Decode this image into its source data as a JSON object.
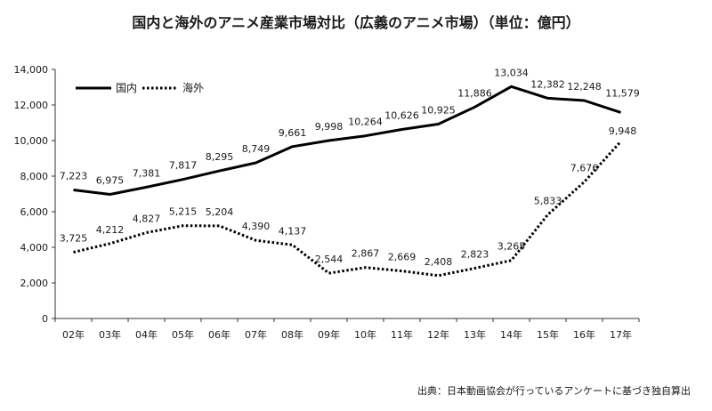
{
  "chart_data": {
    "type": "line",
    "title": "国内と海外のアニメ産業市場対比（広義のアニメ市場）（単位：億円）",
    "xlabel": "",
    "ylabel": "",
    "categories": [
      "02年",
      "03年",
      "04年",
      "05年",
      "06年",
      "07年",
      "08年",
      "09年",
      "10年",
      "11年",
      "12年",
      "13年",
      "14年",
      "15年",
      "16年",
      "17年"
    ],
    "ylim": [
      0,
      14000
    ],
    "yticks": [
      0,
      2000,
      4000,
      6000,
      8000,
      10000,
      12000,
      14000
    ],
    "ytick_labels": [
      "0",
      "2,000",
      "4,000",
      "6,000",
      "8,000",
      "10,000",
      "12,000",
      "14,000"
    ],
    "grid": false,
    "legend_position": "top-left",
    "series": [
      {
        "name": "国内",
        "style": "solid",
        "color": "#000000",
        "values": [
          7223,
          6975,
          7381,
          7817,
          8295,
          8749,
          9661,
          9998,
          10264,
          10626,
          10925,
          11886,
          13034,
          12382,
          12248,
          11579
        ],
        "value_labels": [
          "7,223",
          "6,975",
          "7,381",
          "7,817",
          "8,295",
          "8,749",
          "9,661",
          "9,998",
          "10,264",
          "10,626",
          "10,925",
          "11,886",
          "13,034",
          "12,382",
          "12,248",
          "11,579"
        ]
      },
      {
        "name": "海外",
        "style": "dotted",
        "color": "#000000",
        "values": [
          3725,
          4212,
          4827,
          5215,
          5204,
          4390,
          4137,
          2544,
          2867,
          2669,
          2408,
          2823,
          3265,
          5833,
          7676,
          9948
        ],
        "value_labels": [
          "3,725",
          "4,212",
          "4,827",
          "5,215",
          "5,204",
          "4,390",
          "4,137",
          "2,544",
          "2,867",
          "2,669",
          "2,408",
          "2,823",
          "3,265",
          "5,833",
          "7,676",
          "9,948"
        ]
      }
    ]
  },
  "source_note": "出典：日本動画協会が行っているアンケートに基づき独自算出"
}
